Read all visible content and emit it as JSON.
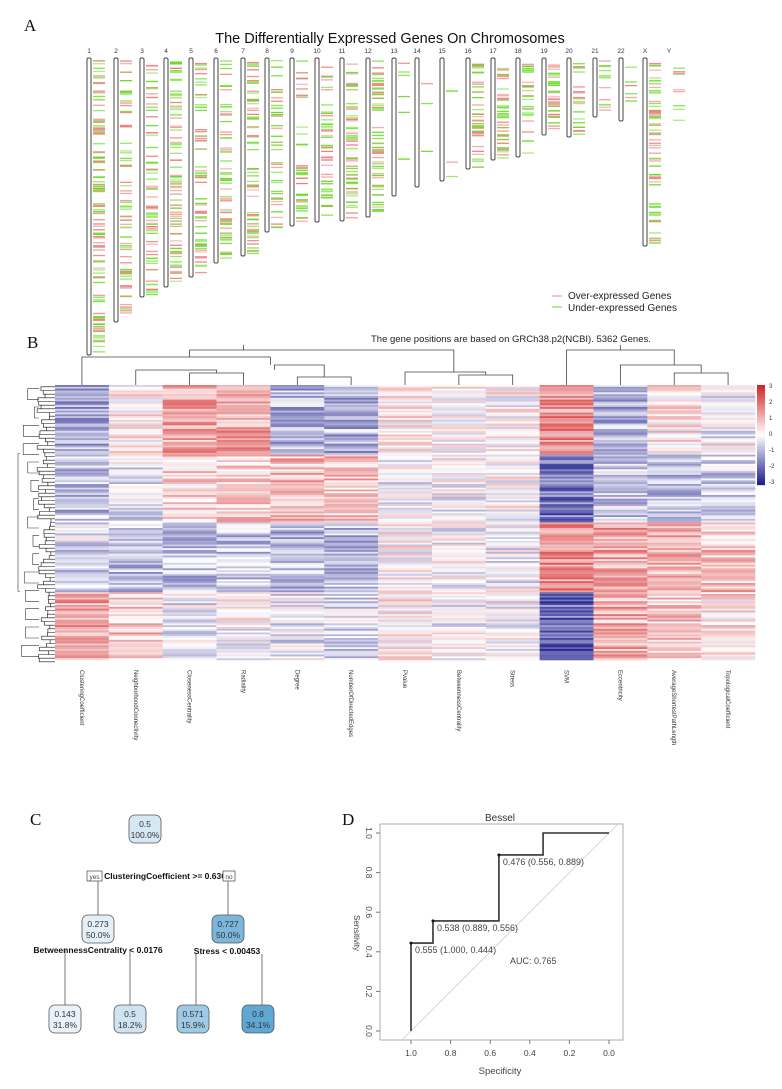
{
  "panels": {
    "a": "A",
    "b": "B",
    "c": "C",
    "d": "D"
  },
  "colors": {
    "over": "#f08080",
    "under": "#66dd22",
    "heat_high": "#d62728",
    "heat_mid": "#ffffff",
    "heat_low": "#1f1f8f",
    "tree_node": "#5fa8d3",
    "roc_line": "#333333"
  },
  "chart_data": [
    {
      "type": "chromosome-ideogram",
      "title": "The Differentially Expressed Genes On Chromosomes",
      "chromosomes": [
        "1",
        "2",
        "3",
        "4",
        "5",
        "6",
        "7",
        "8",
        "9",
        "10",
        "11",
        "12",
        "13",
        "14",
        "15",
        "16",
        "17",
        "18",
        "19",
        "20",
        "21",
        "22",
        "X",
        "Y"
      ],
      "legend": [
        {
          "label": "Over-expressed Genes",
          "color": "#f08080"
        },
        {
          "label": "Under-expressed Genes",
          "color": "#66dd22"
        }
      ],
      "legend_position": "bottom-right",
      "note": "The gene positions are based on GRCh38.p2(NCBI). 5362 Genes."
    },
    {
      "type": "heatmap",
      "columns": [
        "ClusteringCoefficient",
        "NeighborhoodConnectivity",
        "ClosenessCentrality",
        "Radiality",
        "Degree",
        "NumberOfDirectedEdges",
        "Pvalue",
        "BetweennessCentrality",
        "Stress",
        "SVM",
        "Eccentricity",
        "AverageShortestPathLength",
        "TopologicalCoefficient"
      ],
      "colorbar_ticks": [
        3,
        2,
        1,
        0,
        -1,
        -2,
        -3
      ],
      "dendrograms": "rows and columns"
    },
    {
      "type": "decision-tree",
      "root": {
        "value": "0.5",
        "pct": "100.0%"
      },
      "root_split": "ClusteringCoefficient >= 0.636",
      "yes_label": "yes",
      "no_label": "no",
      "left": {
        "value": "0.273",
        "pct": "50.0%",
        "split": "BetweennessCentrality < 0.0176"
      },
      "right": {
        "value": "0.727",
        "pct": "50.0%",
        "split": "Stress < 0.00453"
      },
      "leaves": [
        {
          "value": "0.143",
          "pct": "31.8%",
          "shade": 0.0
        },
        {
          "value": "0.5",
          "pct": "18.2%",
          "shade": 0.25
        },
        {
          "value": "0.571",
          "pct": "15.9%",
          "shade": 0.5
        },
        {
          "value": "0.8",
          "pct": "34.1%",
          "shade": 1.0
        }
      ]
    },
    {
      "type": "line",
      "title": "Bessel",
      "xlabel": "Specificity",
      "ylabel": "Sensitivity",
      "xlim": [
        1.0,
        0.0
      ],
      "ylim": [
        0.0,
        1.0
      ],
      "xticks": [
        "1.0",
        "0.8",
        "0.6",
        "0.4",
        "0.2",
        "0.0"
      ],
      "yticks": [
        "0.0",
        "0.2",
        "0.4",
        "0.6",
        "0.8",
        "1.0"
      ],
      "x": [
        1.0,
        1.0,
        0.889,
        0.889,
        0.556,
        0.556,
        0.333,
        0.333,
        0.0
      ],
      "y": [
        0.0,
        0.444,
        0.444,
        0.556,
        0.556,
        0.889,
        0.889,
        1.0,
        1.0
      ],
      "thresholds": [
        {
          "x": 1.0,
          "y": 0.444,
          "label": "0.555 (1.000, 0.444)"
        },
        {
          "x": 0.889,
          "y": 0.556,
          "label": "0.538 (0.889, 0.556)"
        },
        {
          "x": 0.556,
          "y": 0.889,
          "label": "0.476 (0.556, 0.889)"
        }
      ],
      "auc_label": "AUC: 0.765",
      "diagonal": true
    }
  ]
}
